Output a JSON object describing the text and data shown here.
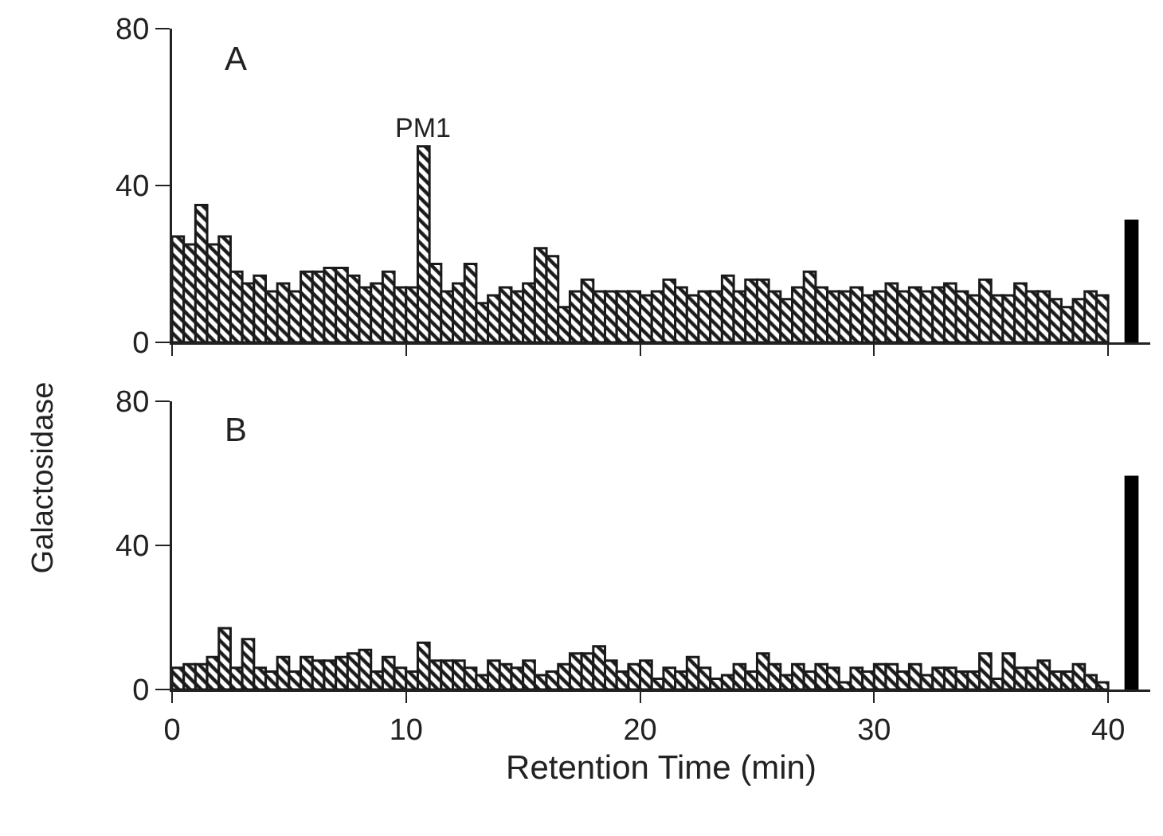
{
  "chart_data": [
    {
      "type": "bar",
      "ylabel": "Galactosidase",
      "annotations": [
        "A",
        {
          "text": "PM1",
          "x": 10.75,
          "y": 50
        }
      ],
      "xlim": [
        0,
        41.8
      ],
      "xticks": [
        0,
        10,
        20,
        30,
        40
      ],
      "ylim": [
        0,
        80
      ],
      "yticks": [
        0,
        40,
        80
      ],
      "tick_labels": "y",
      "grid": false,
      "x": [
        0.25,
        0.75,
        1.25,
        1.75,
        2.25,
        2.75,
        3.25,
        3.75,
        4.25,
        4.75,
        5.25,
        5.75,
        6.25,
        6.75,
        7.25,
        7.75,
        8.25,
        8.75,
        9.25,
        9.75,
        10.25,
        10.75,
        11.25,
        11.75,
        12.25,
        12.75,
        13.25,
        13.75,
        14.25,
        14.75,
        15.25,
        15.75,
        16.25,
        16.75,
        17.25,
        17.75,
        18.25,
        18.75,
        19.25,
        19.75,
        20.25,
        20.75,
        21.25,
        21.75,
        22.25,
        22.75,
        23.25,
        23.75,
        24.25,
        24.75,
        25.25,
        25.75,
        26.25,
        26.75,
        27.25,
        27.75,
        28.25,
        28.75,
        29.25,
        29.75,
        30.25,
        30.75,
        31.25,
        31.75,
        32.25,
        32.75,
        33.25,
        33.75,
        34.25,
        34.75,
        35.25,
        35.75,
        36.25,
        36.75,
        37.25,
        37.75,
        38.25,
        38.75,
        39.25,
        39.75
      ],
      "series": [
        {
          "color": "#1a1a1a",
          "values": [
            27,
            25,
            35,
            25,
            27,
            18,
            15,
            17,
            13,
            15,
            13,
            18,
            18,
            19,
            19,
            17,
            14,
            15,
            18,
            14,
            14,
            50,
            20,
            13,
            15,
            20,
            10,
            12,
            14,
            13,
            15,
            24,
            22,
            9,
            13,
            16,
            13,
            13,
            13,
            13,
            12,
            13,
            16,
            14,
            12,
            13,
            13,
            17,
            13,
            16,
            16,
            13,
            11,
            14,
            18,
            14,
            13,
            13,
            14,
            12,
            13,
            15,
            13,
            14,
            13,
            14,
            15,
            13,
            12,
            16,
            12,
            12,
            15,
            13,
            13,
            11,
            9,
            11,
            13,
            12
          ]
        },
        {
          "type": "bar",
          "color": "#000000",
          "x": [
            41
          ],
          "values": [
            31
          ]
        }
      ]
    },
    {
      "type": "bar",
      "xlabel": "Retention Time (min)",
      "annotations": [
        "B"
      ],
      "xlim": [
        0,
        41.8
      ],
      "xticks": [
        0,
        10,
        20,
        30,
        40
      ],
      "ylim": [
        0,
        80
      ],
      "yticks": [
        0,
        40,
        80
      ],
      "grid": false,
      "x": [
        0.25,
        0.75,
        1.25,
        1.75,
        2.25,
        2.75,
        3.25,
        3.75,
        4.25,
        4.75,
        5.25,
        5.75,
        6.25,
        6.75,
        7.25,
        7.75,
        8.25,
        8.75,
        9.25,
        9.75,
        10.25,
        10.75,
        11.25,
        11.75,
        12.25,
        12.75,
        13.25,
        13.75,
        14.25,
        14.75,
        15.25,
        15.75,
        16.25,
        16.75,
        17.25,
        17.75,
        18.25,
        18.75,
        19.25,
        19.75,
        20.25,
        20.75,
        21.25,
        21.75,
        22.25,
        22.75,
        23.25,
        23.75,
        24.25,
        24.75,
        25.25,
        25.75,
        26.25,
        26.75,
        27.25,
        27.75,
        28.25,
        28.75,
        29.25,
        29.75,
        30.25,
        30.75,
        31.25,
        31.75,
        32.25,
        32.75,
        33.25,
        33.75,
        34.25,
        34.75,
        35.25,
        35.75,
        36.25,
        36.75,
        37.25,
        37.75,
        38.25,
        38.75,
        39.25,
        39.75
      ],
      "series": [
        {
          "color": "#1a1a1a",
          "values": [
            6,
            7,
            7,
            9,
            17,
            6,
            14,
            6,
            5,
            9,
            5,
            9,
            8,
            8,
            9,
            10,
            11,
            5,
            9,
            6,
            5,
            13,
            8,
            8,
            8,
            6,
            4,
            8,
            7,
            6,
            8,
            4,
            5,
            7,
            10,
            10,
            12,
            8,
            5,
            7,
            8,
            3,
            6,
            5,
            9,
            6,
            3,
            4,
            7,
            5,
            10,
            7,
            4,
            7,
            5,
            7,
            6,
            2,
            6,
            5,
            7,
            7,
            5,
            7,
            4,
            6,
            6,
            5,
            5,
            10,
            3,
            10,
            6,
            6,
            8,
            5,
            5,
            7,
            4,
            2
          ]
        },
        {
          "type": "bar",
          "color": "#000000",
          "x": [
            41
          ],
          "values": [
            59
          ]
        }
      ]
    }
  ]
}
